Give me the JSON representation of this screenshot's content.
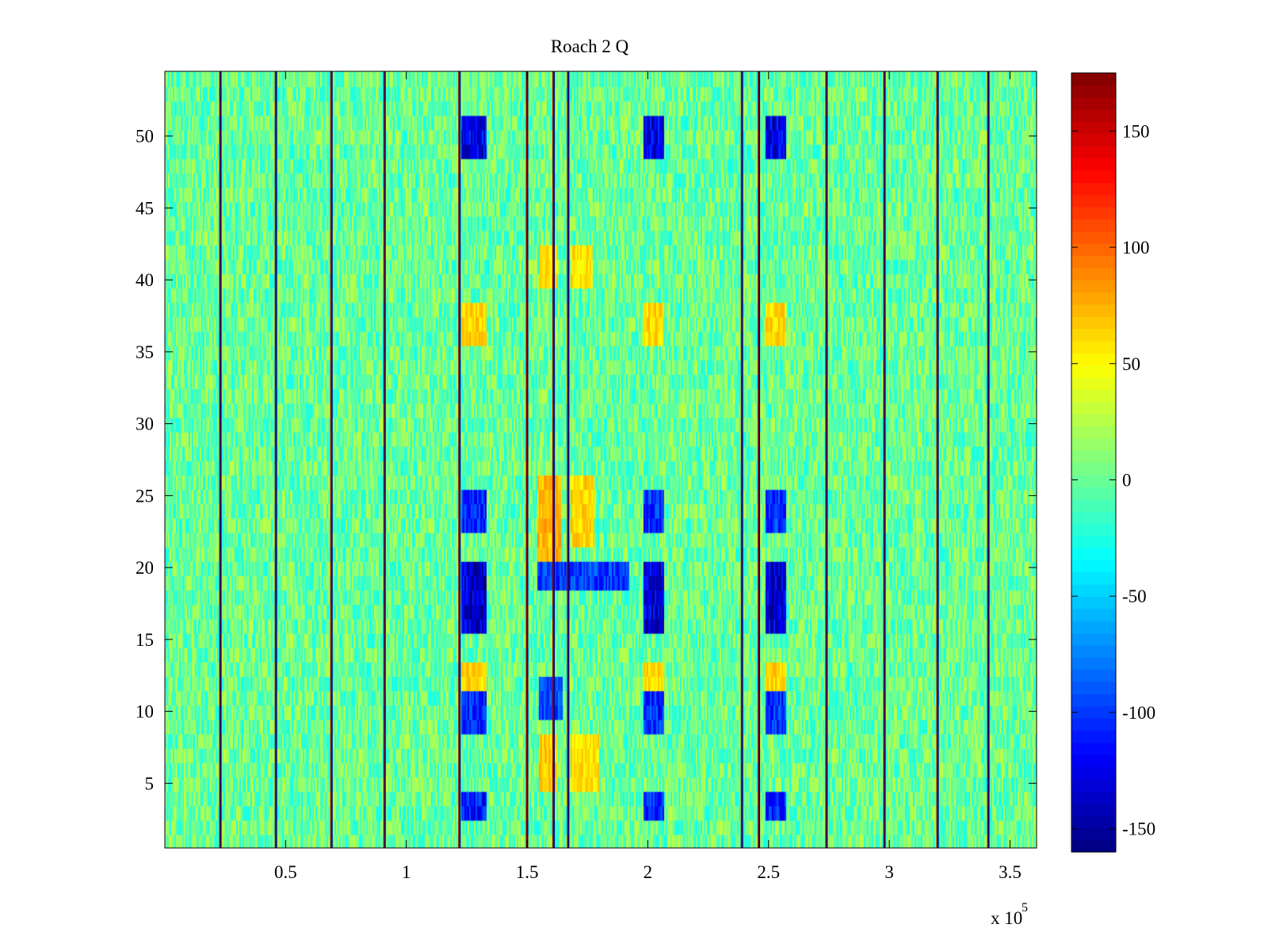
{
  "chart_data": {
    "type": "heatmap",
    "title": "Roach 2 Q",
    "xlabel": "",
    "ylabel": "",
    "x_exponent_label": "x 10",
    "x_exponent_power": "5",
    "xlim": [
      0,
      361000
    ],
    "ylim": [
      0.5,
      54.5
    ],
    "x_ticks": [
      {
        "value": 50000,
        "label": "0.5"
      },
      {
        "value": 100000,
        "label": "1"
      },
      {
        "value": 150000,
        "label": "1.5"
      },
      {
        "value": 200000,
        "label": "2"
      },
      {
        "value": 250000,
        "label": "2.5"
      },
      {
        "value": 300000,
        "label": "3"
      },
      {
        "value": 350000,
        "label": "3.5"
      }
    ],
    "y_ticks": [
      {
        "value": 5,
        "label": "5"
      },
      {
        "value": 10,
        "label": "10"
      },
      {
        "value": 15,
        "label": "15"
      },
      {
        "value": 20,
        "label": "20"
      },
      {
        "value": 25,
        "label": "25"
      },
      {
        "value": 30,
        "label": "30"
      },
      {
        "value": 35,
        "label": "35"
      },
      {
        "value": 40,
        "label": "40"
      },
      {
        "value": 45,
        "label": "45"
      },
      {
        "value": 50,
        "label": "50"
      }
    ],
    "rows": 54,
    "colormap": "jet",
    "color_limits": [
      -160,
      175
    ],
    "colorbar_ticks": [
      {
        "value": 150,
        "label": "150"
      },
      {
        "value": 100,
        "label": "100"
      },
      {
        "value": 50,
        "label": "50"
      },
      {
        "value": 0,
        "label": "0"
      },
      {
        "value": -50,
        "label": "-50"
      },
      {
        "value": -100,
        "label": "-100"
      },
      {
        "value": -150,
        "label": "-150"
      }
    ],
    "background_level": 0,
    "background_spread": 30,
    "stripe_columns_x": [
      23000,
      46000,
      69000,
      91000,
      122000,
      150000,
      161000,
      167000,
      239000,
      246000,
      274000,
      298000,
      320000,
      341000
    ],
    "blocks": [
      {
        "x_range": [
          123000,
          133000
        ],
        "rows": [
          49,
          50,
          51
        ],
        "value": -140
      },
      {
        "x_range": [
          198000,
          207000
        ],
        "rows": [
          49,
          50,
          51
        ],
        "value": -140
      },
      {
        "x_range": [
          249000,
          257000
        ],
        "rows": [
          49,
          50,
          51
        ],
        "value": -140
      },
      {
        "x_range": [
          155000,
          163000
        ],
        "rows": [
          40,
          41,
          42
        ],
        "value": 65
      },
      {
        "x_range": [
          168000,
          177000
        ],
        "rows": [
          40,
          41,
          42
        ],
        "value": 65
      },
      {
        "x_range": [
          123000,
          133000
        ],
        "rows": [
          36,
          37,
          38
        ],
        "value": 70
      },
      {
        "x_range": [
          198000,
          207000
        ],
        "rows": [
          36,
          37,
          38
        ],
        "value": 70
      },
      {
        "x_range": [
          249000,
          257000
        ],
        "rows": [
          36,
          37,
          38
        ],
        "value": 70
      },
      {
        "x_range": [
          123000,
          133000
        ],
        "rows": [
          23,
          24,
          25
        ],
        "value": -115
      },
      {
        "x_range": [
          198000,
          207000
        ],
        "rows": [
          23,
          24,
          25
        ],
        "value": -115
      },
      {
        "x_range": [
          249000,
          257000
        ],
        "rows": [
          23,
          24,
          25
        ],
        "value": -115
      },
      {
        "x_range": [
          154000,
          164000
        ],
        "rows": [
          21,
          22,
          23,
          24,
          25,
          26
        ],
        "value": 80
      },
      {
        "x_range": [
          168000,
          178000
        ],
        "rows": [
          22,
          23,
          24,
          25,
          26
        ],
        "value": 70
      },
      {
        "x_range": [
          123000,
          133000
        ],
        "rows": [
          16,
          17,
          18,
          19,
          20
        ],
        "value": -150
      },
      {
        "x_range": [
          198000,
          207000
        ],
        "rows": [
          16,
          17,
          18,
          19,
          20
        ],
        "value": -150
      },
      {
        "x_range": [
          249000,
          257000
        ],
        "rows": [
          16,
          17,
          18,
          19,
          20
        ],
        "value": -150
      },
      {
        "x_range": [
          154000,
          192000
        ],
        "rows": [
          19,
          20
        ],
        "value": -110
      },
      {
        "x_range": [
          123000,
          133000
        ],
        "rows": [
          12,
          13
        ],
        "value": 70
      },
      {
        "x_range": [
          198000,
          207000
        ],
        "rows": [
          12,
          13
        ],
        "value": 70
      },
      {
        "x_range": [
          249000,
          257000
        ],
        "rows": [
          12,
          13
        ],
        "value": 70
      },
      {
        "x_range": [
          123000,
          133000
        ],
        "rows": [
          9,
          10,
          11
        ],
        "value": -115
      },
      {
        "x_range": [
          198000,
          207000
        ],
        "rows": [
          9,
          10,
          11
        ],
        "value": -115
      },
      {
        "x_range": [
          249000,
          257000
        ],
        "rows": [
          9,
          10,
          11
        ],
        "value": -115
      },
      {
        "x_range": [
          155000,
          165000
        ],
        "rows": [
          10,
          11,
          12
        ],
        "value": -105
      },
      {
        "x_range": [
          155000,
          163000
        ],
        "rows": [
          5,
          6,
          7,
          8
        ],
        "value": 75
      },
      {
        "x_range": [
          168000,
          180000
        ],
        "rows": [
          5,
          6,
          7,
          8
        ],
        "value": 65
      },
      {
        "x_range": [
          123000,
          133000
        ],
        "rows": [
          3,
          4
        ],
        "value": -120
      },
      {
        "x_range": [
          198000,
          207000
        ],
        "rows": [
          3,
          4
        ],
        "value": -120
      },
      {
        "x_range": [
          249000,
          257000
        ],
        "rows": [
          3,
          4
        ],
        "value": -120
      }
    ]
  }
}
